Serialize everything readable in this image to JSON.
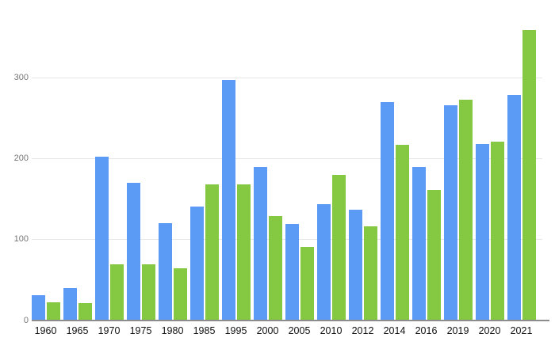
{
  "chart_data": {
    "type": "bar",
    "title": "",
    "xlabel": "",
    "ylabel": "",
    "categories": [
      "1960",
      "1965",
      "1970",
      "1975",
      "1980",
      "1985",
      "1995",
      "2000",
      "2005",
      "2010",
      "2012",
      "2014",
      "2016",
      "2019",
      "2020",
      "2021"
    ],
    "series": [
      {
        "name": "blue",
        "color": "#5b9bf5",
        "values": [
          31,
          40,
          203,
          170,
          120,
          141,
          297,
          190,
          119,
          144,
          137,
          270,
          190,
          266,
          218,
          279
        ]
      },
      {
        "name": "green",
        "color": "#85c841",
        "values": [
          23,
          22,
          69,
          69,
          65,
          168,
          168,
          129,
          91,
          180,
          116,
          217,
          161,
          273,
          221,
          359
        ]
      }
    ],
    "y_ticks": [
      0,
      100,
      200,
      300
    ],
    "ylim": [
      0,
      388
    ],
    "grid": true,
    "legend": "none",
    "background": "#ffffff",
    "gridline_color": "#e6e6e6",
    "axis_line_color": "#8c8c8c",
    "x_tick_color": "#111111",
    "y_tick_color": "#757575"
  }
}
